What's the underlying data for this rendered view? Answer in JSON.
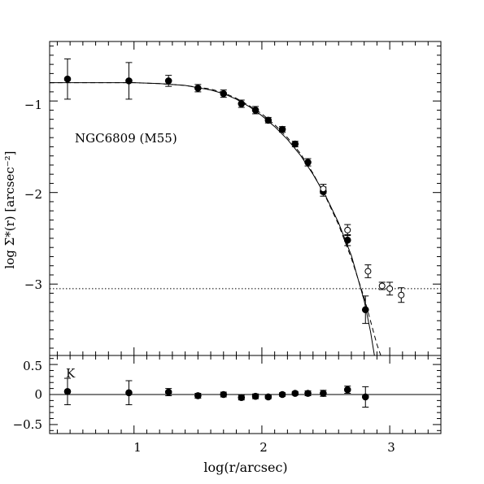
{
  "chart_data": [
    {
      "type": "scatter",
      "panel": "surface-density-profile",
      "annotation": "NGC6809 (M55)",
      "xlabel": "",
      "ylabel": "log Σ*(r) [arcsec⁻²]",
      "xlim": [
        0.34,
        3.4
      ],
      "ylim": [
        -3.78,
        -0.35
      ],
      "y_ticks": [
        "−1",
        "−2",
        "−3"
      ],
      "background_level": -3.05,
      "series": [
        {
          "marker": "filled-circle",
          "x": [
            0.48,
            0.96,
            1.27,
            1.5,
            1.7,
            1.84,
            1.95,
            2.05,
            2.16,
            2.26,
            2.36,
            2.48,
            2.67,
            2.81
          ],
          "y": [
            -0.76,
            -0.78,
            -0.78,
            -0.86,
            -0.92,
            -1.03,
            -1.1,
            -1.21,
            -1.31,
            -1.47,
            -1.67,
            -1.99,
            -2.52,
            -3.28
          ],
          "yerr": [
            0.22,
            0.2,
            0.06,
            0.04,
            0.04,
            0.04,
            0.04,
            0.03,
            0.03,
            0.03,
            0.04,
            0.05,
            0.06,
            0.15
          ]
        },
        {
          "marker": "open-circle",
          "x": [
            2.48,
            2.67,
            2.83,
            2.94,
            3.0,
            3.09
          ],
          "y": [
            -1.96,
            -2.41,
            -2.86,
            -3.02,
            -3.05,
            -3.12
          ],
          "yerr": [
            0.05,
            0.06,
            0.07,
            0.04,
            0.07,
            0.08
          ]
        }
      ],
      "models": [
        {
          "style": "solid",
          "x": [
            0.34,
            0.8,
            1.0,
            1.2,
            1.4,
            1.6,
            1.7,
            1.8,
            1.9,
            2.0,
            2.1,
            2.2,
            2.3,
            2.4,
            2.5,
            2.6,
            2.7,
            2.8,
            2.85,
            2.88
          ],
          "y": [
            -0.8,
            -0.8,
            -0.8,
            -0.81,
            -0.83,
            -0.88,
            -0.92,
            -0.98,
            -1.06,
            -1.16,
            -1.28,
            -1.42,
            -1.59,
            -1.8,
            -2.04,
            -2.33,
            -2.69,
            -3.18,
            -3.52,
            -3.78
          ]
        },
        {
          "style": "dashed",
          "x": [
            0.34,
            0.8,
            1.0,
            1.2,
            1.4,
            1.6,
            1.7,
            1.8,
            1.9,
            2.0,
            2.1,
            2.2,
            2.3,
            2.4,
            2.5,
            2.6,
            2.7,
            2.8,
            2.9,
            2.93
          ],
          "y": [
            -0.8,
            -0.8,
            -0.8,
            -0.81,
            -0.83,
            -0.87,
            -0.91,
            -0.97,
            -1.05,
            -1.14,
            -1.26,
            -1.4,
            -1.57,
            -1.79,
            -2.05,
            -2.35,
            -2.72,
            -3.15,
            -3.66,
            -3.78
          ]
        }
      ]
    },
    {
      "type": "scatter",
      "panel": "residuals",
      "annotation": "K",
      "xlabel": "log(r/arcsec)",
      "ylabel": "",
      "xlim": [
        0.34,
        3.4
      ],
      "ylim": [
        -0.65,
        0.65
      ],
      "x_ticks": [
        "1",
        "2",
        "3"
      ],
      "y_ticks": [
        "0.5",
        "0",
        "−0.5"
      ],
      "zero_line": 0,
      "series": [
        {
          "marker": "filled-circle",
          "x": [
            0.48,
            0.96,
            1.27,
            1.5,
            1.7,
            1.84,
            1.95,
            2.05,
            2.16,
            2.26,
            2.36,
            2.48,
            2.67,
            2.81
          ],
          "y": [
            0.05,
            0.03,
            0.04,
            -0.02,
            0.0,
            -0.05,
            -0.03,
            -0.04,
            0.0,
            0.02,
            0.02,
            0.02,
            0.08,
            -0.04
          ],
          "yerr": [
            0.22,
            0.2,
            0.06,
            0.04,
            0.04,
            0.04,
            0.04,
            0.03,
            0.03,
            0.03,
            0.04,
            0.05,
            0.06,
            0.17
          ]
        }
      ]
    }
  ]
}
